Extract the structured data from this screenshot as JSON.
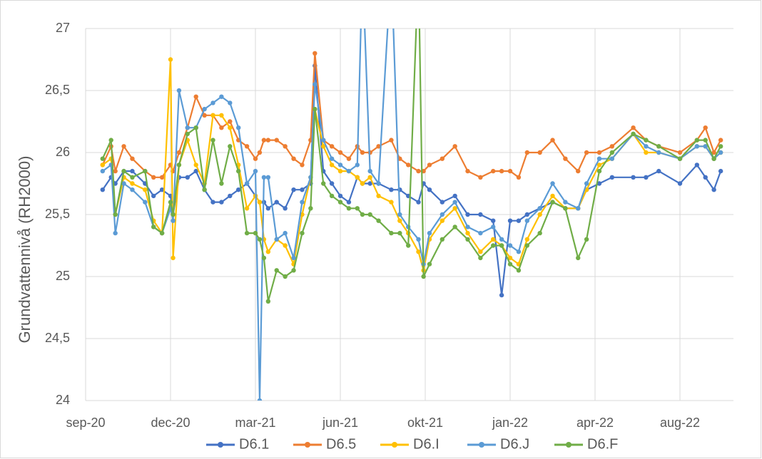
{
  "chart_data": {
    "type": "line",
    "y_label": "Grundvattennivå (RH2000)",
    "x": [
      20,
      30,
      35,
      45,
      55,
      70,
      80,
      90,
      100,
      103,
      110,
      120,
      130,
      140,
      150,
      160,
      170,
      180,
      190,
      200,
      205,
      210,
      215,
      225,
      235,
      245,
      255,
      265,
      270,
      280,
      290,
      300,
      310,
      320,
      326,
      335,
      345,
      360,
      370,
      380,
      392,
      398,
      405,
      420,
      435,
      450,
      465,
      480,
      490,
      500,
      510,
      520,
      535,
      550,
      565,
      580,
      590,
      605,
      620,
      645,
      660,
      675,
      700,
      720,
      730,
      740,
      748
    ],
    "series": [
      {
        "name": "D6.1",
        "color": "#4472c4",
        "values": [
          25.7,
          25.8,
          25.75,
          25.85,
          25.85,
          25.75,
          25.65,
          25.7,
          25.65,
          25.5,
          25.8,
          25.8,
          25.85,
          25.7,
          25.6,
          25.6,
          25.65,
          25.7,
          25.75,
          25.65,
          25.6,
          25.6,
          25.55,
          25.6,
          25.55,
          25.7,
          25.7,
          25.75,
          26.7,
          25.85,
          25.75,
          25.65,
          25.6,
          25.8,
          25.75,
          25.75,
          25.75,
          25.7,
          25.7,
          25.65,
          25.6,
          25.75,
          25.7,
          25.6,
          25.65,
          25.5,
          25.5,
          25.45,
          24.85,
          25.45,
          25.45,
          25.5,
          25.55,
          25.6,
          25.55,
          25.55,
          25.7,
          25.75,
          25.8,
          25.8,
          25.8,
          25.85,
          25.75,
          25.9,
          25.8,
          25.7,
          25.85
        ]
      },
      {
        "name": "D6.5",
        "color": "#ed7d31",
        "values": [
          25.9,
          26.05,
          25.85,
          26.05,
          25.95,
          25.85,
          25.8,
          25.8,
          25.9,
          25.85,
          26.0,
          26.2,
          26.45,
          26.3,
          26.3,
          26.2,
          26.25,
          26.1,
          26.05,
          25.95,
          26.0,
          26.1,
          26.1,
          26.1,
          26.05,
          25.95,
          25.9,
          26.1,
          26.8,
          26.1,
          26.05,
          26.0,
          25.95,
          26.05,
          26.0,
          26.0,
          26.05,
          26.1,
          25.95,
          25.9,
          25.85,
          25.85,
          25.9,
          25.95,
          26.05,
          25.85,
          25.8,
          25.85,
          25.85,
          25.85,
          25.8,
          26.0,
          26.0,
          26.1,
          25.95,
          25.85,
          26.0,
          26.0,
          26.05,
          26.2,
          26.1,
          26.05,
          26.0,
          26.1,
          26.2,
          26.0,
          26.1
        ]
      },
      {
        "name": "D6.I",
        "color": "#ffc000",
        "values": [
          25.9,
          25.95,
          25.5,
          25.8,
          25.75,
          25.7,
          25.45,
          25.35,
          26.75,
          25.15,
          25.9,
          26.1,
          25.9,
          25.75,
          26.3,
          26.3,
          26.2,
          25.9,
          25.55,
          25.65,
          25.6,
          25.3,
          25.2,
          25.3,
          25.25,
          25.1,
          25.5,
          25.8,
          26.35,
          26.05,
          25.9,
          25.85,
          25.85,
          25.8,
          25.75,
          25.8,
          25.65,
          25.6,
          25.45,
          25.35,
          25.2,
          25.05,
          25.3,
          25.45,
          25.55,
          25.35,
          25.2,
          25.3,
          25.25,
          25.15,
          25.1,
          25.3,
          25.5,
          25.65,
          25.55,
          25.55,
          25.7,
          25.9,
          25.95,
          26.15,
          26.0,
          26.0,
          25.95,
          26.05,
          26.05,
          25.95,
          26.0
        ]
      },
      {
        "name": "D6.J",
        "color": "#5b9bd5",
        "values": [
          25.85,
          25.9,
          25.35,
          25.75,
          25.7,
          25.6,
          25.4,
          25.35,
          25.55,
          25.45,
          26.5,
          26.2,
          26.2,
          26.35,
          26.4,
          26.45,
          26.4,
          26.2,
          25.75,
          25.85,
          24.0,
          25.8,
          25.8,
          25.3,
          25.35,
          25.15,
          25.6,
          25.8,
          26.55,
          26.1,
          25.95,
          25.9,
          25.85,
          25.9,
          27.5,
          25.85,
          25.75,
          27.5,
          25.5,
          25.4,
          25.3,
          25.1,
          25.35,
          25.5,
          25.6,
          25.4,
          25.35,
          25.4,
          25.3,
          25.25,
          25.2,
          25.45,
          25.55,
          25.75,
          25.6,
          25.55,
          25.75,
          25.95,
          25.95,
          26.15,
          26.05,
          26.0,
          25.95,
          26.05,
          26.05,
          25.95,
          26.0
        ]
      },
      {
        "name": "D6.F",
        "color": "#70ad47",
        "values": [
          25.95,
          26.1,
          25.5,
          25.85,
          25.8,
          25.85,
          25.4,
          25.35,
          25.6,
          25.5,
          25.9,
          26.15,
          26.2,
          25.7,
          26.1,
          25.75,
          26.05,
          25.85,
          25.35,
          25.35,
          25.3,
          25.15,
          24.8,
          25.05,
          25.0,
          25.05,
          25.35,
          25.55,
          26.35,
          25.75,
          25.65,
          25.6,
          25.55,
          25.55,
          25.5,
          25.5,
          25.45,
          25.35,
          25.35,
          25.25,
          27.5,
          25.0,
          25.1,
          25.3,
          25.4,
          25.3,
          25.15,
          25.25,
          25.25,
          25.1,
          25.05,
          25.25,
          25.35,
          25.6,
          25.55,
          25.15,
          25.3,
          25.85,
          26.0,
          26.15,
          26.1,
          26.05,
          25.95,
          26.1,
          26.1,
          25.95,
          26.05
        ]
      }
    ],
    "xlim": [
      0,
      763
    ],
    "xticks": [
      {
        "value": 0,
        "label": "sep-20"
      },
      {
        "value": 100,
        "label": "dec-20"
      },
      {
        "value": 200,
        "label": "mar-21"
      },
      {
        "value": 300,
        "label": "jun-21"
      },
      {
        "value": 400,
        "label": "okt-21"
      },
      {
        "value": 500,
        "label": "jan-22"
      },
      {
        "value": 600,
        "label": "apr-22"
      },
      {
        "value": 700,
        "label": "aug-22"
      }
    ],
    "ylim": [
      24,
      27
    ],
    "yticks": [
      24,
      {
        "value": 24.5,
        "label": "24,5"
      },
      25,
      {
        "value": 25.5,
        "label": "25,5"
      },
      26,
      {
        "value": 26.5,
        "label": "26,5"
      },
      27
    ],
    "grid": true,
    "legend": "bottom"
  }
}
